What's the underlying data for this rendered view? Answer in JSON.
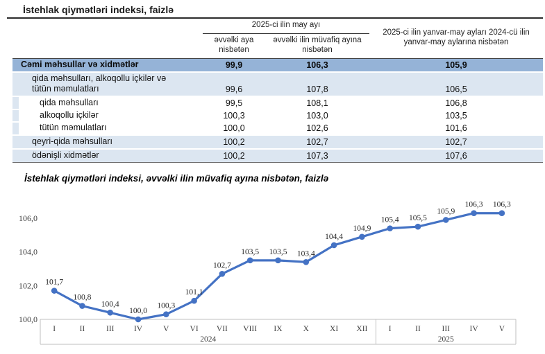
{
  "table": {
    "title": "İstehlak qiymətləri indeksi, faizlə",
    "header": {
      "group_col": "2025-ci ilin may ayı",
      "sub_col1": "əvvəlki aya nisbətən",
      "sub_col2": "əvvəlki ilin müvafiq ayına nisbətən",
      "ytd_col": "2025-ci ilin yanvar-may ayları 2024-cü ilin yanvar-may aylarına nisbətən"
    },
    "rows": [
      {
        "label": "Cəmi məhsullar və xidmətlər",
        "values": [
          "99,9",
          "106,3",
          "105,9"
        ],
        "style": "total",
        "indent": 0,
        "two_line": false
      },
      {
        "label": "qida məhsulları, alkoqollu içkilər və\ntütün məmulatları",
        "values": [
          "99,6",
          "107,8",
          "106,5"
        ],
        "style": "band",
        "indent": 1,
        "two_line": true
      },
      {
        "label": "qida məhsulları",
        "values": [
          "99,5",
          "108,1",
          "106,8"
        ],
        "style": "plain",
        "indent": 2,
        "two_line": false
      },
      {
        "label": "alkoqollu içkilər",
        "values": [
          "100,3",
          "103,0",
          "103,5"
        ],
        "style": "plain",
        "indent": 2,
        "two_line": false
      },
      {
        "label": "tütün məmulatları",
        "values": [
          "100,0",
          "102,6",
          "101,6"
        ],
        "style": "plain",
        "indent": 2,
        "two_line": false
      },
      {
        "label": "qeyri-qida məhsulları",
        "values": [
          "100,2",
          "102,7",
          "102,7"
        ],
        "style": "band",
        "indent": 1,
        "two_line": false
      },
      {
        "label": "ödənişli xidmətlər",
        "values": [
          "100,2",
          "107,3",
          "107,6"
        ],
        "style": "band",
        "indent": 1,
        "two_line": false
      }
    ]
  },
  "chart_data": {
    "type": "line",
    "title": "İstehlak qiymətləri indeksi, əvvəlki ilin müvafiq ayına nisbətən, faizlə",
    "categories": [
      "I",
      "II",
      "III",
      "IV",
      "V",
      "VI",
      "VII",
      "VIII",
      "IX",
      "X",
      "XI",
      "XII",
      "I",
      "II",
      "III",
      "IV",
      "V"
    ],
    "year_groups": [
      {
        "label": "2024",
        "count": 12
      },
      {
        "label": "2025",
        "count": 5
      }
    ],
    "values": [
      101.7,
      100.8,
      100.4,
      100.0,
      100.3,
      101.1,
      102.7,
      103.5,
      103.5,
      103.4,
      104.4,
      104.9,
      105.4,
      105.5,
      105.9,
      106.3,
      106.3
    ],
    "point_labels": [
      "101,7",
      "100,8",
      "100,4",
      "100,0",
      "100,3",
      "101,1",
      "102,7",
      "103,5",
      "103,5",
      "103,4",
      "104,4",
      "104,9",
      "105,4",
      "105,5",
      "105,9",
      "106,3",
      "106,3"
    ],
    "y_ticks": [
      "100,0",
      "102,0",
      "104,0",
      "106,0"
    ],
    "y_tick_values": [
      100,
      102,
      104,
      106
    ],
    "ylim": [
      100,
      107
    ],
    "grid": "off",
    "legend": "none",
    "xlabel": "",
    "ylabel": "",
    "line_color": "#4472C4",
    "axis_color": "#BFBFBF",
    "tick_label_color": "#3f3f3f",
    "data_label_color": "#262626"
  }
}
